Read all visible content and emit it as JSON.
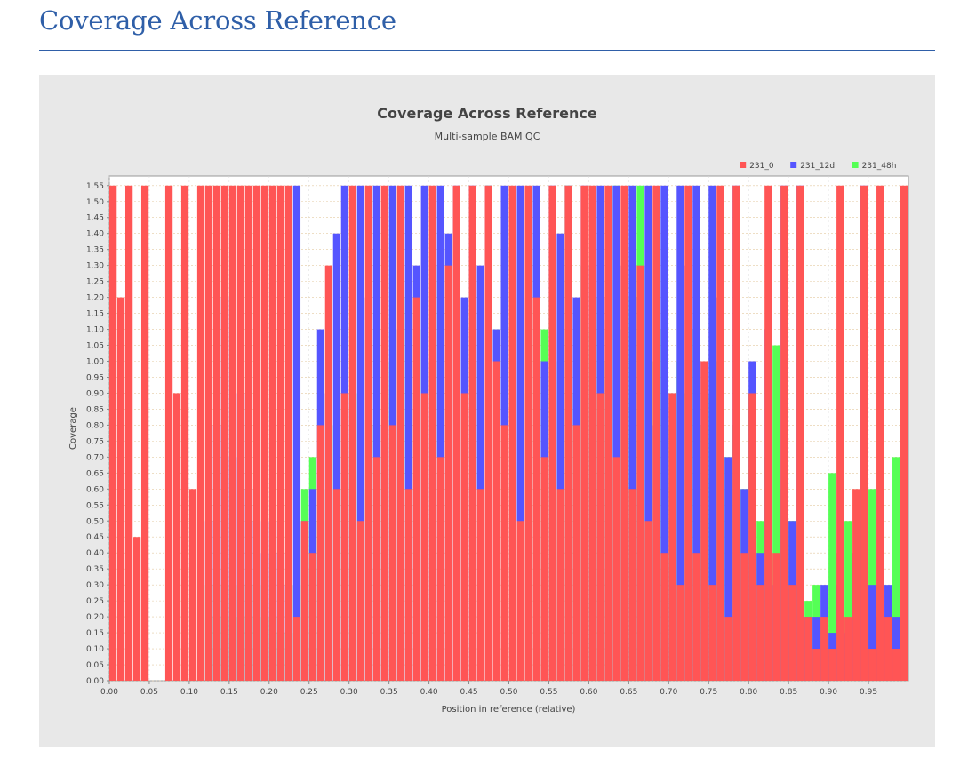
{
  "page": {
    "heading": "Coverage Across Reference"
  },
  "chart_data": {
    "type": "area",
    "title": "Coverage Across Reference",
    "subtitle": "Multi-sample BAM QC",
    "xlabel": "Position in reference (relative)",
    "ylabel": "Coverage",
    "xlim": [
      0.0,
      1.0
    ],
    "ylim": [
      0.0,
      1.58
    ],
    "grid": true,
    "legend_position": "top-right",
    "x_ticks": [
      "0.00",
      "0.05",
      "0.10",
      "0.15",
      "0.20",
      "0.25",
      "0.30",
      "0.35",
      "0.40",
      "0.45",
      "0.50",
      "0.55",
      "0.60",
      "0.65",
      "0.70",
      "0.75",
      "0.80",
      "0.85",
      "0.90",
      "0.95"
    ],
    "y_ticks": [
      "0.00",
      "0.05",
      "0.10",
      "0.15",
      "0.20",
      "0.25",
      "0.30",
      "0.35",
      "0.40",
      "0.45",
      "0.50",
      "0.55",
      "0.60",
      "0.65",
      "0.70",
      "0.75",
      "0.80",
      "0.85",
      "0.90",
      "0.95",
      "1.00",
      "1.05",
      "1.10",
      "1.15",
      "1.20",
      "1.25",
      "1.30",
      "1.35",
      "1.40",
      "1.45",
      "1.50",
      "1.55"
    ],
    "x": [
      0.0,
      0.01,
      0.02,
      0.03,
      0.04,
      0.05,
      0.06,
      0.07,
      0.08,
      0.09,
      0.1,
      0.11,
      0.12,
      0.13,
      0.14,
      0.15,
      0.16,
      0.17,
      0.18,
      0.19,
      0.2,
      0.21,
      0.22,
      0.23,
      0.24,
      0.25,
      0.26,
      0.27,
      0.28,
      0.29,
      0.3,
      0.31,
      0.32,
      0.33,
      0.34,
      0.35,
      0.36,
      0.37,
      0.38,
      0.39,
      0.4,
      0.41,
      0.42,
      0.43,
      0.44,
      0.45,
      0.46,
      0.47,
      0.48,
      0.49,
      0.5,
      0.51,
      0.52,
      0.53,
      0.54,
      0.55,
      0.56,
      0.57,
      0.58,
      0.59,
      0.6,
      0.61,
      0.62,
      0.63,
      0.64,
      0.65,
      0.66,
      0.67,
      0.68,
      0.69,
      0.7,
      0.71,
      0.72,
      0.73,
      0.74,
      0.75,
      0.76,
      0.77,
      0.78,
      0.79,
      0.8,
      0.81,
      0.82,
      0.83,
      0.84,
      0.85,
      0.86,
      0.87,
      0.88,
      0.89,
      0.9,
      0.91,
      0.92,
      0.93,
      0.94,
      0.95,
      0.96,
      0.97,
      0.98,
      0.99
    ],
    "series": [
      {
        "name": "231_0",
        "color": "#ff5555",
        "values": [
          1.55,
          1.2,
          1.55,
          0.45,
          1.55,
          0.0,
          0.0,
          1.55,
          0.9,
          1.55,
          0.6,
          1.55,
          1.55,
          1.55,
          1.55,
          1.55,
          1.55,
          1.55,
          1.55,
          1.55,
          1.55,
          1.55,
          1.55,
          0.2,
          0.5,
          0.4,
          0.8,
          1.3,
          0.6,
          0.9,
          1.55,
          0.5,
          1.55,
          0.7,
          1.55,
          0.8,
          1.55,
          0.6,
          1.2,
          0.9,
          1.55,
          0.7,
          1.3,
          1.55,
          0.9,
          1.55,
          0.6,
          1.55,
          1.0,
          0.8,
          1.55,
          0.5,
          1.55,
          1.2,
          0.7,
          1.55,
          0.6,
          1.55,
          0.8,
          1.55,
          1.55,
          0.9,
          1.55,
          0.7,
          1.55,
          0.6,
          1.3,
          0.5,
          1.55,
          0.4,
          0.9,
          0.3,
          1.55,
          0.4,
          1.0,
          0.3,
          1.55,
          0.2,
          1.55,
          0.4,
          0.9,
          0.3,
          1.55,
          0.4,
          1.55,
          0.3,
          1.55,
          0.2,
          0.1,
          0.2,
          0.1,
          1.55,
          0.2,
          0.6,
          1.55,
          0.1,
          1.55,
          0.2,
          0.1,
          1.55
        ]
      },
      {
        "name": "231_12d",
        "color": "#5555ff",
        "values": [
          0.0,
          0.0,
          0.0,
          0.0,
          0.0,
          0.0,
          0.0,
          0.0,
          0.0,
          0.0,
          0.0,
          0.0,
          0.5,
          0.8,
          1.2,
          0.7,
          0.9,
          0.6,
          0.5,
          0.4,
          0.5,
          0.4,
          0.3,
          1.55,
          0.5,
          0.6,
          1.1,
          0.9,
          1.4,
          1.55,
          0.9,
          1.55,
          1.2,
          1.55,
          0.8,
          1.55,
          1.1,
          1.55,
          1.3,
          1.55,
          1.0,
          1.55,
          1.4,
          1.55,
          1.2,
          1.55,
          1.3,
          1.55,
          1.1,
          1.55,
          0.9,
          1.55,
          1.2,
          1.55,
          1.0,
          1.55,
          1.4,
          1.55,
          1.2,
          1.55,
          1.3,
          1.55,
          1.2,
          1.55,
          1.3,
          1.55,
          1.2,
          1.55,
          0.8,
          1.55,
          0.9,
          1.55,
          1.3,
          1.55,
          1.0,
          1.55,
          1.2,
          0.7,
          1.55,
          0.6,
          1.0,
          0.4,
          1.1,
          0.3,
          1.55,
          0.5,
          1.55,
          0.2,
          0.2,
          0.3,
          0.15,
          0.3,
          0.15,
          0.4,
          1.55,
          0.3,
          0.2,
          0.3,
          0.2,
          0.1
        ]
      },
      {
        "name": "231_48h",
        "color": "#55ff55",
        "values": [
          0.0,
          0.0,
          0.0,
          0.0,
          0.0,
          0.0,
          0.0,
          0.0,
          0.0,
          0.0,
          0.0,
          0.0,
          0.3,
          0.2,
          0.3,
          0.2,
          0.3,
          0.2,
          0.3,
          0.2,
          0.2,
          0.15,
          0.15,
          0.3,
          0.6,
          0.7,
          0.5,
          0.6,
          0.8,
          0.6,
          0.7,
          0.9,
          0.6,
          0.8,
          0.7,
          1.0,
          0.8,
          1.2,
          0.9,
          1.1,
          0.8,
          1.3,
          1.0,
          1.4,
          0.9,
          1.2,
          1.0,
          1.55,
          1.1,
          1.3,
          1.0,
          1.2,
          0.9,
          1.4,
          1.1,
          1.2,
          1.0,
          1.55,
          0.9,
          1.3,
          1.1,
          1.2,
          1.0,
          1.55,
          1.1,
          1.2,
          1.55,
          1.3,
          1.0,
          1.1,
          0.8,
          1.0,
          0.9,
          1.1,
          0.8,
          0.9,
          1.0,
          0.7,
          0.8,
          0.6,
          0.9,
          0.5,
          0.7,
          1.05,
          0.6,
          0.5,
          0.3,
          0.25,
          0.3,
          0.2,
          0.65,
          0.4,
          0.5,
          0.3,
          0.5,
          0.6,
          0.3,
          0.2,
          0.7,
          0.2
        ]
      }
    ]
  }
}
